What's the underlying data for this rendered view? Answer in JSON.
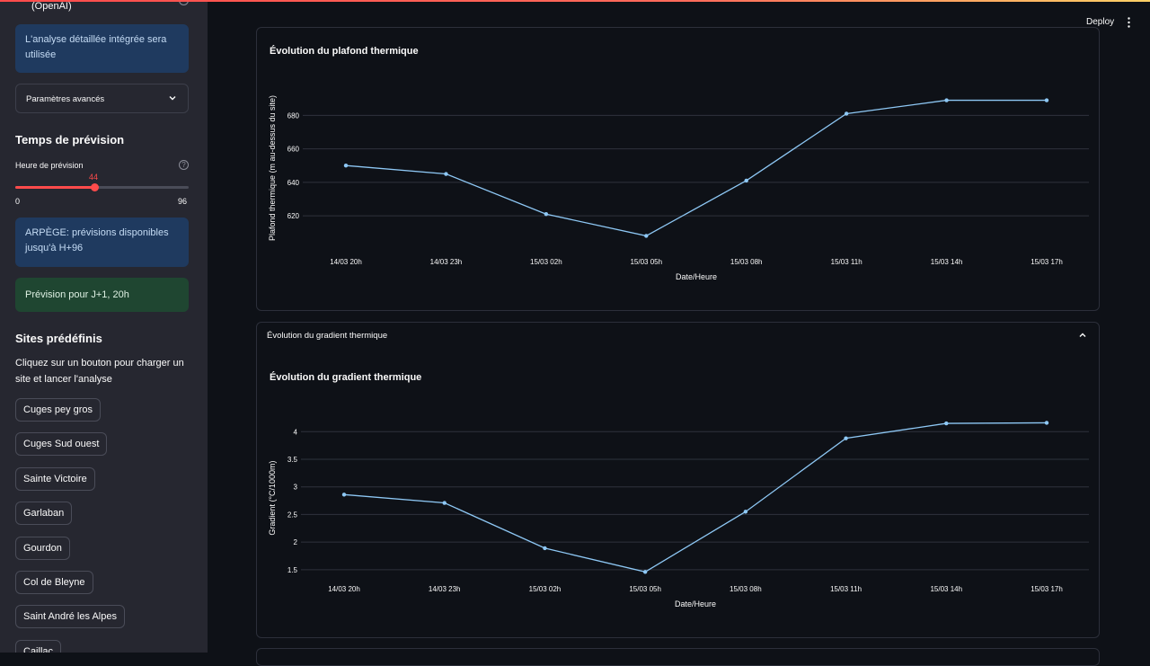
{
  "sidebar": {
    "cut_text": "(OpenAI)",
    "info_analysis": "L'analyse détaillée intégrée sera utilisée",
    "advanced_params": "Paramètres avancés",
    "forecast_time_heading": "Temps de prévision",
    "forecast_hour_label": "Heure de prévision",
    "slider": {
      "value": "44",
      "min": "0",
      "max": "96",
      "value_num": 44,
      "max_num": 96
    },
    "arpege_info": "ARPÈGE: prévisions disponibles jusqu'à H+96",
    "forecast_for": "Prévision pour J+1, 20h",
    "sites_heading": "Sites prédéfinis",
    "sites_desc": "Cliquez sur un bouton pour charger un site et lancer l'analyse",
    "sites": [
      "Cuges pey gros",
      "Cuges Sud ouest",
      "Sainte Victoire",
      "Garlaban",
      "Gourdon",
      "Col de Bleyne",
      "Saint André les Alpes",
      "Caillac"
    ]
  },
  "header": {
    "deploy_label": "Deploy"
  },
  "gradient_expander": {
    "label": "Évolution du gradient thermique"
  },
  "colors": {
    "line": "#8ec8f5",
    "grid": "#2e323d",
    "accent": "#ff4b4b"
  },
  "chart_data": [
    {
      "type": "line",
      "title": "Évolution du plafond thermique",
      "xlabel": "Date/Heure",
      "ylabel": "Plafond thermique (m au-dessus du site)",
      "categories": [
        "14/03 20h",
        "14/03 23h",
        "15/03 02h",
        "15/03 05h",
        "15/03 08h",
        "15/03 11h",
        "15/03 14h",
        "15/03 17h"
      ],
      "values": [
        650,
        645,
        621,
        608,
        641,
        681,
        689,
        689
      ],
      "yticks": [
        620,
        640,
        660,
        680
      ],
      "ylim": [
        605,
        692
      ]
    },
    {
      "type": "line",
      "title": "Évolution du gradient thermique",
      "xlabel": "Date/Heure",
      "ylabel": "Gradient (°C/1000m)",
      "categories": [
        "14/03 20h",
        "14/03 23h",
        "15/03 02h",
        "15/03 05h",
        "15/03 08h",
        "15/03 11h",
        "15/03 14h",
        "15/03 17h"
      ],
      "values": [
        2.86,
        2.71,
        1.89,
        1.46,
        2.55,
        3.88,
        4.15,
        4.16
      ],
      "yticks": [
        "1.5",
        "2",
        "2.5",
        "3",
        "3.5",
        "4"
      ],
      "ylim": [
        1.4,
        4.2
      ]
    }
  ]
}
